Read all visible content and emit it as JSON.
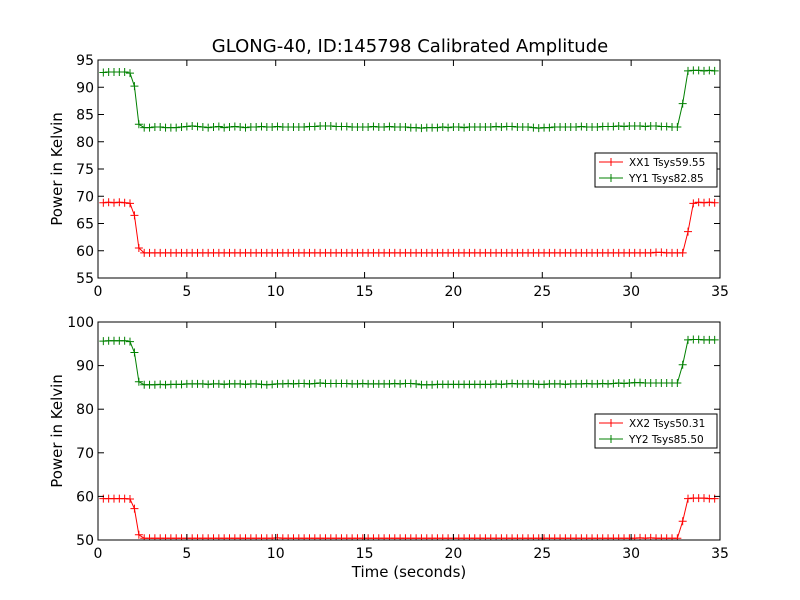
{
  "figure_title": "GLONG-40, ID:145798 Calibrated Amplitude",
  "chart_data": [
    {
      "type": "line",
      "title": "GLONG-40, ID:145798 Calibrated Amplitude",
      "xlabel": "",
      "ylabel": "Power in Kelvin",
      "xlim": [
        0,
        35
      ],
      "ylim": [
        55,
        95
      ],
      "xticks": [
        0,
        5,
        10,
        15,
        20,
        25,
        30,
        35
      ],
      "yticks": [
        55,
        60,
        65,
        70,
        75,
        80,
        85,
        90,
        95
      ],
      "grid": false,
      "legend_position": "right",
      "series": [
        {
          "name": "XX1 Tsys59.55",
          "color": "#ff0000",
          "x": [
            0.3,
            0.6,
            0.9,
            1.2,
            1.5,
            1.8,
            2.05,
            2.3,
            2.6,
            2.9,
            3.2,
            3.5,
            3.8,
            4.1,
            4.4,
            4.7,
            5.0,
            5.3,
            5.6,
            5.9,
            6.2,
            6.5,
            6.8,
            7.1,
            7.4,
            7.7,
            8.0,
            8.3,
            8.6,
            8.9,
            9.2,
            9.5,
            9.8,
            10.1,
            10.4,
            10.7,
            11.0,
            11.3,
            11.6,
            11.9,
            12.2,
            12.5,
            12.8,
            13.1,
            13.4,
            13.7,
            14.0,
            14.3,
            14.6,
            14.9,
            15.2,
            15.5,
            15.8,
            16.1,
            16.4,
            16.7,
            17.0,
            17.3,
            17.6,
            17.9,
            18.2,
            18.5,
            18.8,
            19.1,
            19.4,
            19.7,
            20.0,
            20.3,
            20.6,
            20.9,
            21.2,
            21.5,
            21.8,
            22.1,
            22.4,
            22.7,
            23.0,
            23.3,
            23.6,
            23.9,
            24.2,
            24.5,
            24.8,
            25.1,
            25.4,
            25.7,
            26.0,
            26.3,
            26.6,
            26.9,
            27.2,
            27.5,
            27.8,
            28.1,
            28.4,
            28.7,
            29.0,
            29.3,
            29.6,
            29.9,
            30.2,
            30.5,
            30.8,
            31.1,
            31.4,
            31.7,
            32.0,
            32.3,
            32.6,
            32.9,
            33.2,
            33.5,
            33.8,
            34.1,
            34.4,
            34.7
          ],
          "y": [
            68.8,
            68.9,
            68.8,
            68.9,
            68.8,
            68.7,
            66.5,
            60.5,
            59.6,
            59.6,
            59.6,
            59.6,
            59.6,
            59.6,
            59.6,
            59.6,
            59.6,
            59.6,
            59.6,
            59.6,
            59.6,
            59.6,
            59.6,
            59.6,
            59.6,
            59.6,
            59.6,
            59.6,
            59.6,
            59.6,
            59.6,
            59.6,
            59.6,
            59.6,
            59.6,
            59.6,
            59.6,
            59.6,
            59.6,
            59.6,
            59.6,
            59.6,
            59.6,
            59.6,
            59.6,
            59.6,
            59.6,
            59.6,
            59.6,
            59.6,
            59.6,
            59.6,
            59.6,
            59.6,
            59.6,
            59.6,
            59.6,
            59.6,
            59.6,
            59.6,
            59.6,
            59.6,
            59.6,
            59.6,
            59.6,
            59.6,
            59.6,
            59.6,
            59.6,
            59.6,
            59.6,
            59.6,
            59.6,
            59.6,
            59.6,
            59.6,
            59.6,
            59.6,
            59.6,
            59.6,
            59.6,
            59.6,
            59.6,
            59.6,
            59.6,
            59.6,
            59.6,
            59.6,
            59.6,
            59.6,
            59.6,
            59.6,
            59.6,
            59.6,
            59.6,
            59.6,
            59.6,
            59.6,
            59.6,
            59.6,
            59.6,
            59.6,
            59.6,
            59.6,
            59.7,
            59.7,
            59.6,
            59.6,
            59.6,
            59.6,
            63.5,
            68.7,
            68.9,
            68.8,
            68.9,
            68.8
          ]
        },
        {
          "name": "YY1 Tsys82.85",
          "color": "#008000",
          "x": [
            0.3,
            0.6,
            0.9,
            1.2,
            1.5,
            1.8,
            2.05,
            2.3,
            2.6,
            2.9,
            3.2,
            3.5,
            3.8,
            4.1,
            4.4,
            4.7,
            5.0,
            5.3,
            5.6,
            5.9,
            6.2,
            6.5,
            6.8,
            7.1,
            7.4,
            7.7,
            8.0,
            8.3,
            8.6,
            8.9,
            9.2,
            9.5,
            9.8,
            10.1,
            10.4,
            10.7,
            11.0,
            11.3,
            11.6,
            11.9,
            12.2,
            12.5,
            12.8,
            13.1,
            13.4,
            13.7,
            14.0,
            14.3,
            14.6,
            14.9,
            15.2,
            15.5,
            15.8,
            16.1,
            16.4,
            16.7,
            17.0,
            17.3,
            17.6,
            17.9,
            18.2,
            18.5,
            18.8,
            19.1,
            19.4,
            19.7,
            20.0,
            20.3,
            20.6,
            20.9,
            21.2,
            21.5,
            21.8,
            22.1,
            22.4,
            22.7,
            23.0,
            23.3,
            23.6,
            23.9,
            24.2,
            24.5,
            24.8,
            25.1,
            25.4,
            25.7,
            26.0,
            26.3,
            26.6,
            26.9,
            27.2,
            27.5,
            27.8,
            28.1,
            28.4,
            28.7,
            29.0,
            29.3,
            29.6,
            29.9,
            30.2,
            30.5,
            30.8,
            31.1,
            31.4,
            31.7,
            32.0,
            32.3,
            32.6,
            32.9,
            33.2,
            33.5,
            33.8,
            34.1,
            34.4,
            34.7
          ],
          "y": [
            92.7,
            92.8,
            92.8,
            92.8,
            92.8,
            92.6,
            90.2,
            83.2,
            82.6,
            82.6,
            82.7,
            82.7,
            82.6,
            82.6,
            82.6,
            82.7,
            82.8,
            82.9,
            82.8,
            82.7,
            82.6,
            82.7,
            82.8,
            82.6,
            82.7,
            82.8,
            82.7,
            82.6,
            82.7,
            82.7,
            82.8,
            82.7,
            82.7,
            82.8,
            82.7,
            82.7,
            82.7,
            82.7,
            82.7,
            82.8,
            82.8,
            82.9,
            82.9,
            82.9,
            82.8,
            82.8,
            82.8,
            82.7,
            82.7,
            82.7,
            82.7,
            82.8,
            82.7,
            82.7,
            82.8,
            82.7,
            82.7,
            82.7,
            82.6,
            82.6,
            82.5,
            82.6,
            82.6,
            82.6,
            82.7,
            82.6,
            82.7,
            82.7,
            82.6,
            82.7,
            82.7,
            82.7,
            82.7,
            82.7,
            82.8,
            82.7,
            82.8,
            82.8,
            82.7,
            82.7,
            82.7,
            82.6,
            82.5,
            82.6,
            82.6,
            82.7,
            82.7,
            82.7,
            82.7,
            82.7,
            82.8,
            82.7,
            82.7,
            82.7,
            82.8,
            82.8,
            82.8,
            82.9,
            82.8,
            82.9,
            82.9,
            82.9,
            82.8,
            82.9,
            82.9,
            82.8,
            82.8,
            82.7,
            82.7,
            87.0,
            93.0,
            93.1,
            93.1,
            93.0,
            93.1,
            93.0
          ]
        }
      ]
    },
    {
      "type": "line",
      "title": "",
      "xlabel": "Time (seconds)",
      "ylabel": "Power in Kelvin",
      "xlim": [
        0,
        35
      ],
      "ylim": [
        50,
        100
      ],
      "xticks": [
        0,
        5,
        10,
        15,
        20,
        25,
        30,
        35
      ],
      "yticks": [
        50,
        60,
        70,
        80,
        90,
        100
      ],
      "grid": false,
      "legend_position": "right",
      "series": [
        {
          "name": "XX2 Tsys50.31",
          "color": "#ff0000",
          "x": [
            0.3,
            0.6,
            0.9,
            1.2,
            1.5,
            1.8,
            2.05,
            2.3,
            2.6,
            2.9,
            3.2,
            3.5,
            3.8,
            4.1,
            4.4,
            4.7,
            5.0,
            5.3,
            5.6,
            5.9,
            6.2,
            6.5,
            6.8,
            7.1,
            7.4,
            7.7,
            8.0,
            8.3,
            8.6,
            8.9,
            9.2,
            9.5,
            9.8,
            10.1,
            10.4,
            10.7,
            11.0,
            11.3,
            11.6,
            11.9,
            12.2,
            12.5,
            12.8,
            13.1,
            13.4,
            13.7,
            14.0,
            14.3,
            14.6,
            14.9,
            15.2,
            15.5,
            15.8,
            16.1,
            16.4,
            16.7,
            17.0,
            17.3,
            17.6,
            17.9,
            18.2,
            18.5,
            18.8,
            19.1,
            19.4,
            19.7,
            20.0,
            20.3,
            20.6,
            20.9,
            21.2,
            21.5,
            21.8,
            22.1,
            22.4,
            22.7,
            23.0,
            23.3,
            23.6,
            23.9,
            24.2,
            24.5,
            24.8,
            25.1,
            25.4,
            25.7,
            26.0,
            26.3,
            26.6,
            26.9,
            27.2,
            27.5,
            27.8,
            28.1,
            28.4,
            28.7,
            29.0,
            29.3,
            29.6,
            29.9,
            30.2,
            30.5,
            30.8,
            31.1,
            31.4,
            31.7,
            32.0,
            32.3,
            32.6,
            32.9,
            33.2,
            33.5,
            33.8,
            34.1,
            34.4,
            34.7
          ],
          "y": [
            59.5,
            59.5,
            59.5,
            59.5,
            59.5,
            59.4,
            57.2,
            51.2,
            50.4,
            50.4,
            50.4,
            50.4,
            50.4,
            50.4,
            50.4,
            50.4,
            50.4,
            50.4,
            50.4,
            50.4,
            50.4,
            50.4,
            50.4,
            50.4,
            50.4,
            50.4,
            50.4,
            50.4,
            50.4,
            50.4,
            50.4,
            50.4,
            50.4,
            50.5,
            50.4,
            50.4,
            50.4,
            50.4,
            50.4,
            50.4,
            50.4,
            50.4,
            50.4,
            50.4,
            50.4,
            50.4,
            50.4,
            50.4,
            50.4,
            50.4,
            50.4,
            50.4,
            50.4,
            50.4,
            50.4,
            50.4,
            50.4,
            50.4,
            50.4,
            50.4,
            50.4,
            50.4,
            50.4,
            50.4,
            50.4,
            50.4,
            50.4,
            50.4,
            50.4,
            50.4,
            50.4,
            50.4,
            50.4,
            50.4,
            50.4,
            50.4,
            50.4,
            50.4,
            50.4,
            50.4,
            50.4,
            50.4,
            50.4,
            50.4,
            50.4,
            50.4,
            50.4,
            50.4,
            50.4,
            50.4,
            50.4,
            50.4,
            50.4,
            50.4,
            50.4,
            50.4,
            50.4,
            50.4,
            50.4,
            50.4,
            50.4,
            50.5,
            50.4,
            50.5,
            50.4,
            50.4,
            50.4,
            50.4,
            50.4,
            54.3,
            59.5,
            59.6,
            59.6,
            59.6,
            59.5,
            59.5
          ]
        },
        {
          "name": "YY2 Tsys85.50",
          "color": "#008000",
          "x": [
            0.3,
            0.6,
            0.9,
            1.2,
            1.5,
            1.8,
            2.05,
            2.3,
            2.6,
            2.9,
            3.2,
            3.5,
            3.8,
            4.1,
            4.4,
            4.7,
            5.0,
            5.3,
            5.6,
            5.9,
            6.2,
            6.5,
            6.8,
            7.1,
            7.4,
            7.7,
            8.0,
            8.3,
            8.6,
            8.9,
            9.2,
            9.5,
            9.8,
            10.1,
            10.4,
            10.7,
            11.0,
            11.3,
            11.6,
            11.9,
            12.2,
            12.5,
            12.8,
            13.1,
            13.4,
            13.7,
            14.0,
            14.3,
            14.6,
            14.9,
            15.2,
            15.5,
            15.8,
            16.1,
            16.4,
            16.7,
            17.0,
            17.3,
            17.6,
            17.9,
            18.2,
            18.5,
            18.8,
            19.1,
            19.4,
            19.7,
            20.0,
            20.3,
            20.6,
            20.9,
            21.2,
            21.5,
            21.8,
            22.1,
            22.4,
            22.7,
            23.0,
            23.3,
            23.6,
            23.9,
            24.2,
            24.5,
            24.8,
            25.1,
            25.4,
            25.7,
            26.0,
            26.3,
            26.6,
            26.9,
            27.2,
            27.5,
            27.8,
            28.1,
            28.4,
            28.7,
            29.0,
            29.3,
            29.6,
            29.9,
            30.2,
            30.5,
            30.8,
            31.1,
            31.4,
            31.7,
            32.0,
            32.3,
            32.6,
            32.9,
            33.2,
            33.5,
            33.8,
            34.1,
            34.4,
            34.7
          ],
          "y": [
            95.6,
            95.7,
            95.7,
            95.7,
            95.7,
            95.5,
            93.0,
            86.3,
            85.6,
            85.6,
            85.6,
            85.7,
            85.6,
            85.7,
            85.7,
            85.7,
            85.8,
            85.8,
            85.8,
            85.8,
            85.7,
            85.8,
            85.8,
            85.7,
            85.8,
            85.8,
            85.8,
            85.7,
            85.8,
            85.8,
            85.7,
            85.6,
            85.7,
            85.8,
            85.8,
            85.9,
            85.8,
            85.9,
            85.9,
            85.8,
            85.9,
            86.0,
            85.9,
            85.9,
            85.9,
            85.9,
            85.9,
            85.8,
            85.8,
            85.9,
            85.8,
            85.8,
            85.8,
            85.8,
            85.8,
            85.9,
            85.8,
            85.9,
            85.9,
            85.8,
            85.6,
            85.6,
            85.6,
            85.7,
            85.7,
            85.7,
            85.7,
            85.7,
            85.7,
            85.7,
            85.7,
            85.7,
            85.7,
            85.7,
            85.8,
            85.7,
            85.8,
            85.9,
            85.8,
            85.8,
            85.8,
            85.8,
            85.7,
            85.7,
            85.8,
            85.8,
            85.8,
            85.7,
            85.8,
            85.8,
            85.8,
            85.9,
            85.8,
            85.8,
            85.9,
            85.8,
            85.9,
            86.0,
            85.9,
            86.0,
            86.1,
            86.1,
            86.0,
            86.0,
            86.0,
            86.0,
            86.0,
            86.0,
            86.0,
            90.2,
            95.9,
            96.0,
            96.0,
            95.9,
            95.9,
            95.9
          ]
        }
      ]
    }
  ]
}
